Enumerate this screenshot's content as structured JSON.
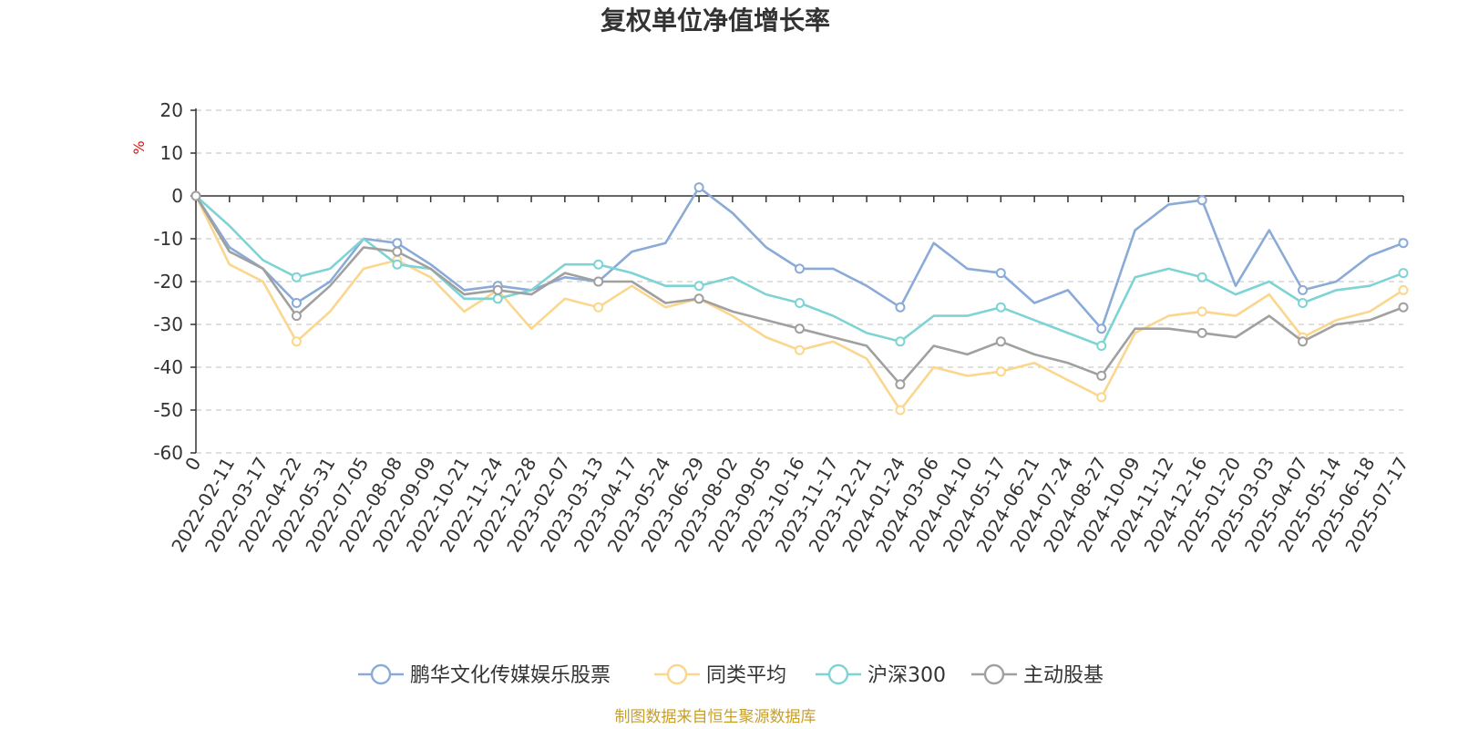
{
  "chart_data": {
    "type": "line",
    "title": "复权单位净值增长率",
    "ylabel": "%",
    "ylim": [
      -60,
      20
    ],
    "yticks": [
      20,
      10,
      0,
      -10,
      -20,
      -30,
      -40,
      -50,
      -60
    ],
    "grid": true,
    "legend_position": "bottom",
    "x": [
      "0",
      "2022-02-11",
      "2022-03-17",
      "2022-04-22",
      "2022-05-31",
      "2022-07-05",
      "2022-08-08",
      "2022-09-09",
      "2022-10-21",
      "2022-11-24",
      "2022-12-28",
      "2023-02-07",
      "2023-03-13",
      "2023-04-17",
      "2023-05-24",
      "2023-06-29",
      "2023-08-02",
      "2023-09-05",
      "2023-10-16",
      "2023-11-17",
      "2023-12-21",
      "2024-01-24",
      "2024-03-06",
      "2024-04-10",
      "2024-05-17",
      "2024-06-21",
      "2024-07-24",
      "2024-08-27",
      "2024-10-09",
      "2024-11-12",
      "2024-12-16",
      "2025-01-20",
      "2025-03-03",
      "2025-04-07",
      "2025-05-14",
      "2025-06-18",
      "2025-07-17"
    ],
    "series": [
      {
        "name": "鹏华文化传媒娱乐股票",
        "color": "#8aaad8",
        "values": [
          0,
          -12,
          -17,
          -25,
          -20,
          -10,
          -11,
          -16,
          -22,
          -21,
          -22,
          -19,
          -20,
          -13,
          -11,
          2,
          -4,
          -12,
          -17,
          -17,
          -21,
          -26,
          -11,
          -17,
          -18,
          -25,
          -22,
          -31,
          -8,
          -2,
          -1,
          -21,
          -8,
          -22,
          -20,
          -14,
          -11
        ]
      },
      {
        "name": "同类平均",
        "color": "#fbd68d",
        "values": [
          0,
          -16,
          -20,
          -34,
          -27,
          -17,
          -15,
          -19,
          -27,
          -22,
          -31,
          -24,
          -26,
          -21,
          -26,
          -24,
          -28,
          -33,
          -36,
          -34,
          -38,
          -50,
          -40,
          -42,
          -41,
          -39,
          -43,
          -47,
          -32,
          -28,
          -27,
          -28,
          -23,
          -33,
          -29,
          -27,
          -22
        ]
      },
      {
        "name": "沪深300",
        "color": "#7fd3d4",
        "values": [
          0,
          -7,
          -15,
          -19,
          -17,
          -10,
          -16,
          -17,
          -24,
          -24,
          -22,
          -16,
          -16,
          -18,
          -21,
          -21,
          -19,
          -23,
          -25,
          -28,
          -32,
          -34,
          -28,
          -28,
          -26,
          -29,
          -32,
          -35,
          -19,
          -17,
          -19,
          -23,
          -20,
          -25,
          -22,
          -21,
          -18
        ]
      },
      {
        "name": "主动股基",
        "color": "#a0a0a0",
        "values": [
          0,
          -13,
          -17,
          -28,
          -21,
          -12,
          -13,
          -17,
          -23,
          -22,
          -23,
          -18,
          -20,
          -20,
          -25,
          -24,
          -27,
          -29,
          -31,
          -33,
          -35,
          -44,
          -35,
          -37,
          -34,
          -37,
          -39,
          -42,
          -31,
          -31,
          -32,
          -33,
          -28,
          -34,
          -30,
          -29,
          -26
        ]
      }
    ],
    "source": "制图数据来自恒生聚源数据库"
  }
}
